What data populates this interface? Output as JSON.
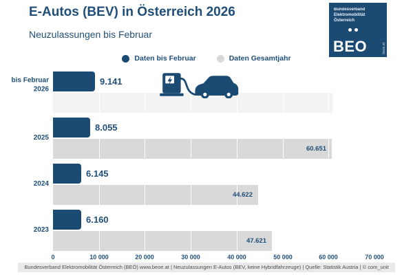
{
  "header": {
    "title": "E-Autos (BEV) in Österreich 2026",
    "subtitle": "Neuzulassungen bis Februar"
  },
  "logo": {
    "org": "Bundesverband\nElektromobilität\nÖsterreich",
    "acronym": "BEO",
    "side_text": "beoe.at",
    "bg_color": "#1b4a73"
  },
  "legend": {
    "items": [
      {
        "label": "Daten bis Februar",
        "color": "#1b4a73"
      },
      {
        "label": "Daten Gesamtjahr",
        "color": "#d9d9d9"
      }
    ]
  },
  "chart_data": {
    "type": "bar",
    "orientation": "horizontal",
    "title": "E-Autos (BEV) in Österreich 2026",
    "subtitle": "Neuzulassungen bis Februar",
    "categories": [
      "bis Februar\n2026",
      "2025",
      "2024",
      "2023"
    ],
    "series": [
      {
        "name": "Daten bis Februar",
        "color": "#1b4a73",
        "values": [
          9141,
          8055,
          6145,
          6160
        ],
        "labels": [
          "9.141",
          "8.055",
          "6.145",
          "6.160"
        ]
      },
      {
        "name": "Daten Gesamtjahr",
        "color": "#d9d9d9",
        "values": [
          60900,
          60651,
          44622,
          47621
        ],
        "labels": [
          "",
          "60.651",
          "44.622",
          "47.621"
        ],
        "faint": [
          true,
          false,
          false,
          false
        ],
        "estimated": [
          true,
          false,
          false,
          false
        ]
      }
    ],
    "faint_color": "#f3f3f3",
    "xlim": [
      0,
      70000
    ],
    "xticks": [
      "0",
      "10 000",
      "20 000",
      "30 000",
      "40 000",
      "50 000",
      "60 000",
      "70 000"
    ],
    "grid": true,
    "legend_position": "top-center"
  },
  "footer": {
    "text": "Bundesverband Elektromobilität Österreich (BEÖ) www.beoe.at | Neuzulassungen E-Autos (BEV, keine Hybridfahrzeuge) | Quelle: Statistik Austria | © com_unit"
  }
}
